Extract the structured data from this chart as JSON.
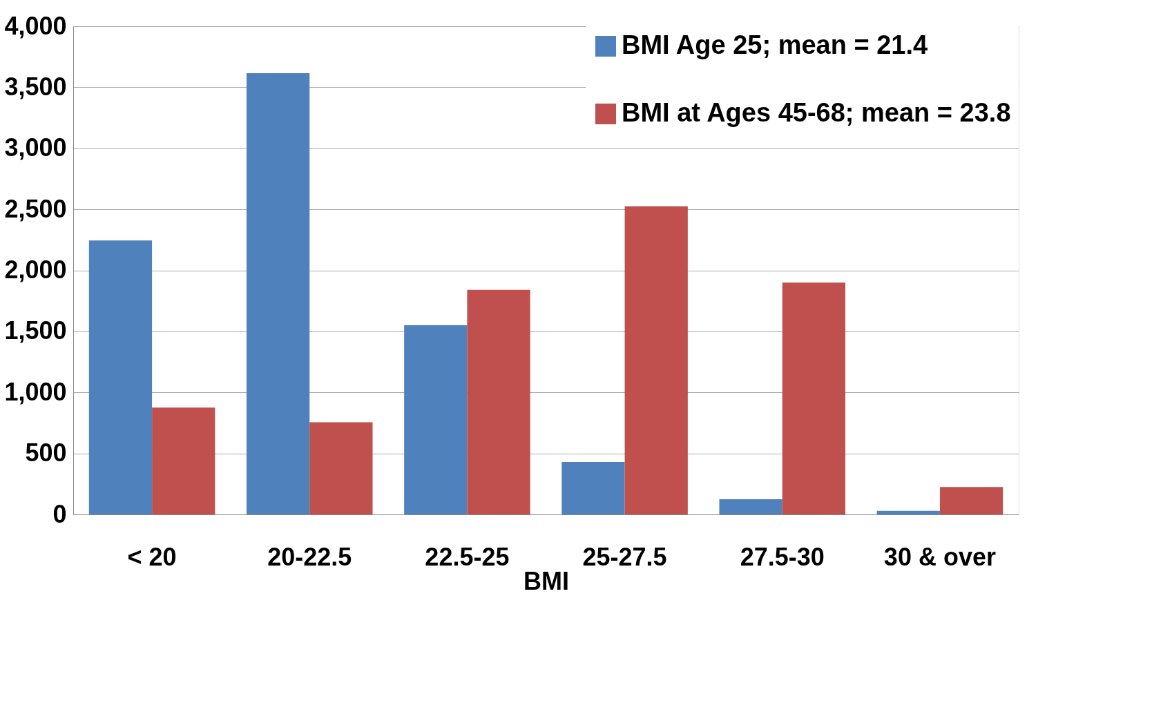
{
  "chart_data": {
    "type": "bar",
    "xlabel": "BMI",
    "categories": [
      "< 20",
      "20-22.5",
      "22.5-25",
      "25-27.5",
      "27.5-30",
      "30 & over"
    ],
    "series": [
      {
        "name": "BMI Age 25; mean = 21.4",
        "color": "#4f81bd",
        "values": [
          2245,
          3615,
          1550,
          430,
          125,
          30
        ]
      },
      {
        "name": "BMI at Ages 45-68; mean = 23.8",
        "color": "#c0504d",
        "values": [
          875,
          755,
          1840,
          2525,
          1900,
          225
        ]
      }
    ],
    "ylim": [
      0,
      4000
    ],
    "yticks": [
      {
        "value": 0,
        "label": "0"
      },
      {
        "value": 500,
        "label": "500"
      },
      {
        "value": 1000,
        "label": "1,000"
      },
      {
        "value": 1500,
        "label": "1,500"
      },
      {
        "value": 2000,
        "label": "2,000"
      },
      {
        "value": 2500,
        "label": "2,500"
      },
      {
        "value": 3000,
        "label": "3,000"
      },
      {
        "value": 3500,
        "label": "3,500"
      },
      {
        "value": 4000,
        "label": "4,000"
      }
    ],
    "grid": "y",
    "legend": "top right"
  }
}
